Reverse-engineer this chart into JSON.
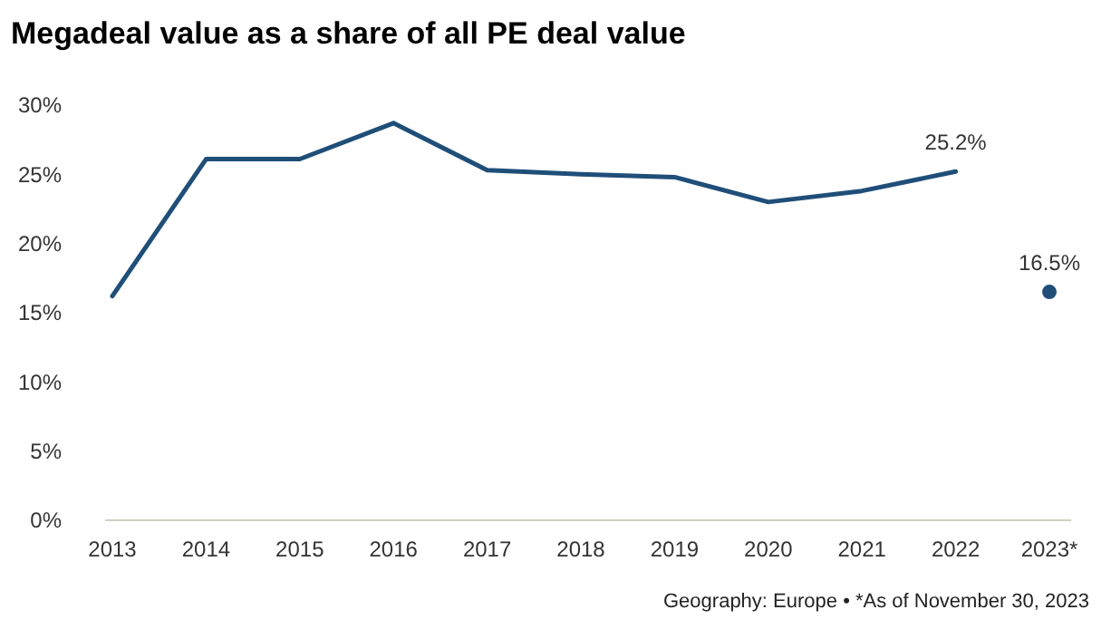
{
  "chart_data": {
    "type": "line",
    "title": "Megadeal value as a share of all PE deal value",
    "categories": [
      "2013",
      "2014",
      "2015",
      "2016",
      "2017",
      "2018",
      "2019",
      "2020",
      "2021",
      "2022",
      "2023*"
    ],
    "series": [
      {
        "type": "line",
        "color": "#1f4e79",
        "marker": "none",
        "values": [
          16.2,
          26.1,
          26.1,
          28.7,
          25.3,
          25.0,
          24.8,
          23.0,
          23.8,
          25.2,
          null
        ],
        "value_labels": [
          null,
          null,
          null,
          null,
          null,
          null,
          null,
          null,
          null,
          "25.2%",
          null
        ]
      },
      {
        "type": "scatter",
        "color": "#1f4e79",
        "marker": "circle",
        "values": [
          null,
          null,
          null,
          null,
          null,
          null,
          null,
          null,
          null,
          null,
          16.5
        ],
        "value_labels": [
          null,
          null,
          null,
          null,
          null,
          null,
          null,
          null,
          null,
          null,
          "16.5%"
        ]
      }
    ],
    "ylim": [
      0,
      30
    ],
    "yticks": [
      {
        "value": 0,
        "label": "0%"
      },
      {
        "value": 5,
        "label": "5%"
      },
      {
        "value": 10,
        "label": "10%"
      },
      {
        "value": 15,
        "label": "15%"
      },
      {
        "value": 20,
        "label": "20%"
      },
      {
        "value": 25,
        "label": "25%"
      },
      {
        "value": 30,
        "label": "30%"
      }
    ],
    "grid": false,
    "annotations": [
      "Geography: Europe • *As of November 30, 2023"
    ]
  }
}
